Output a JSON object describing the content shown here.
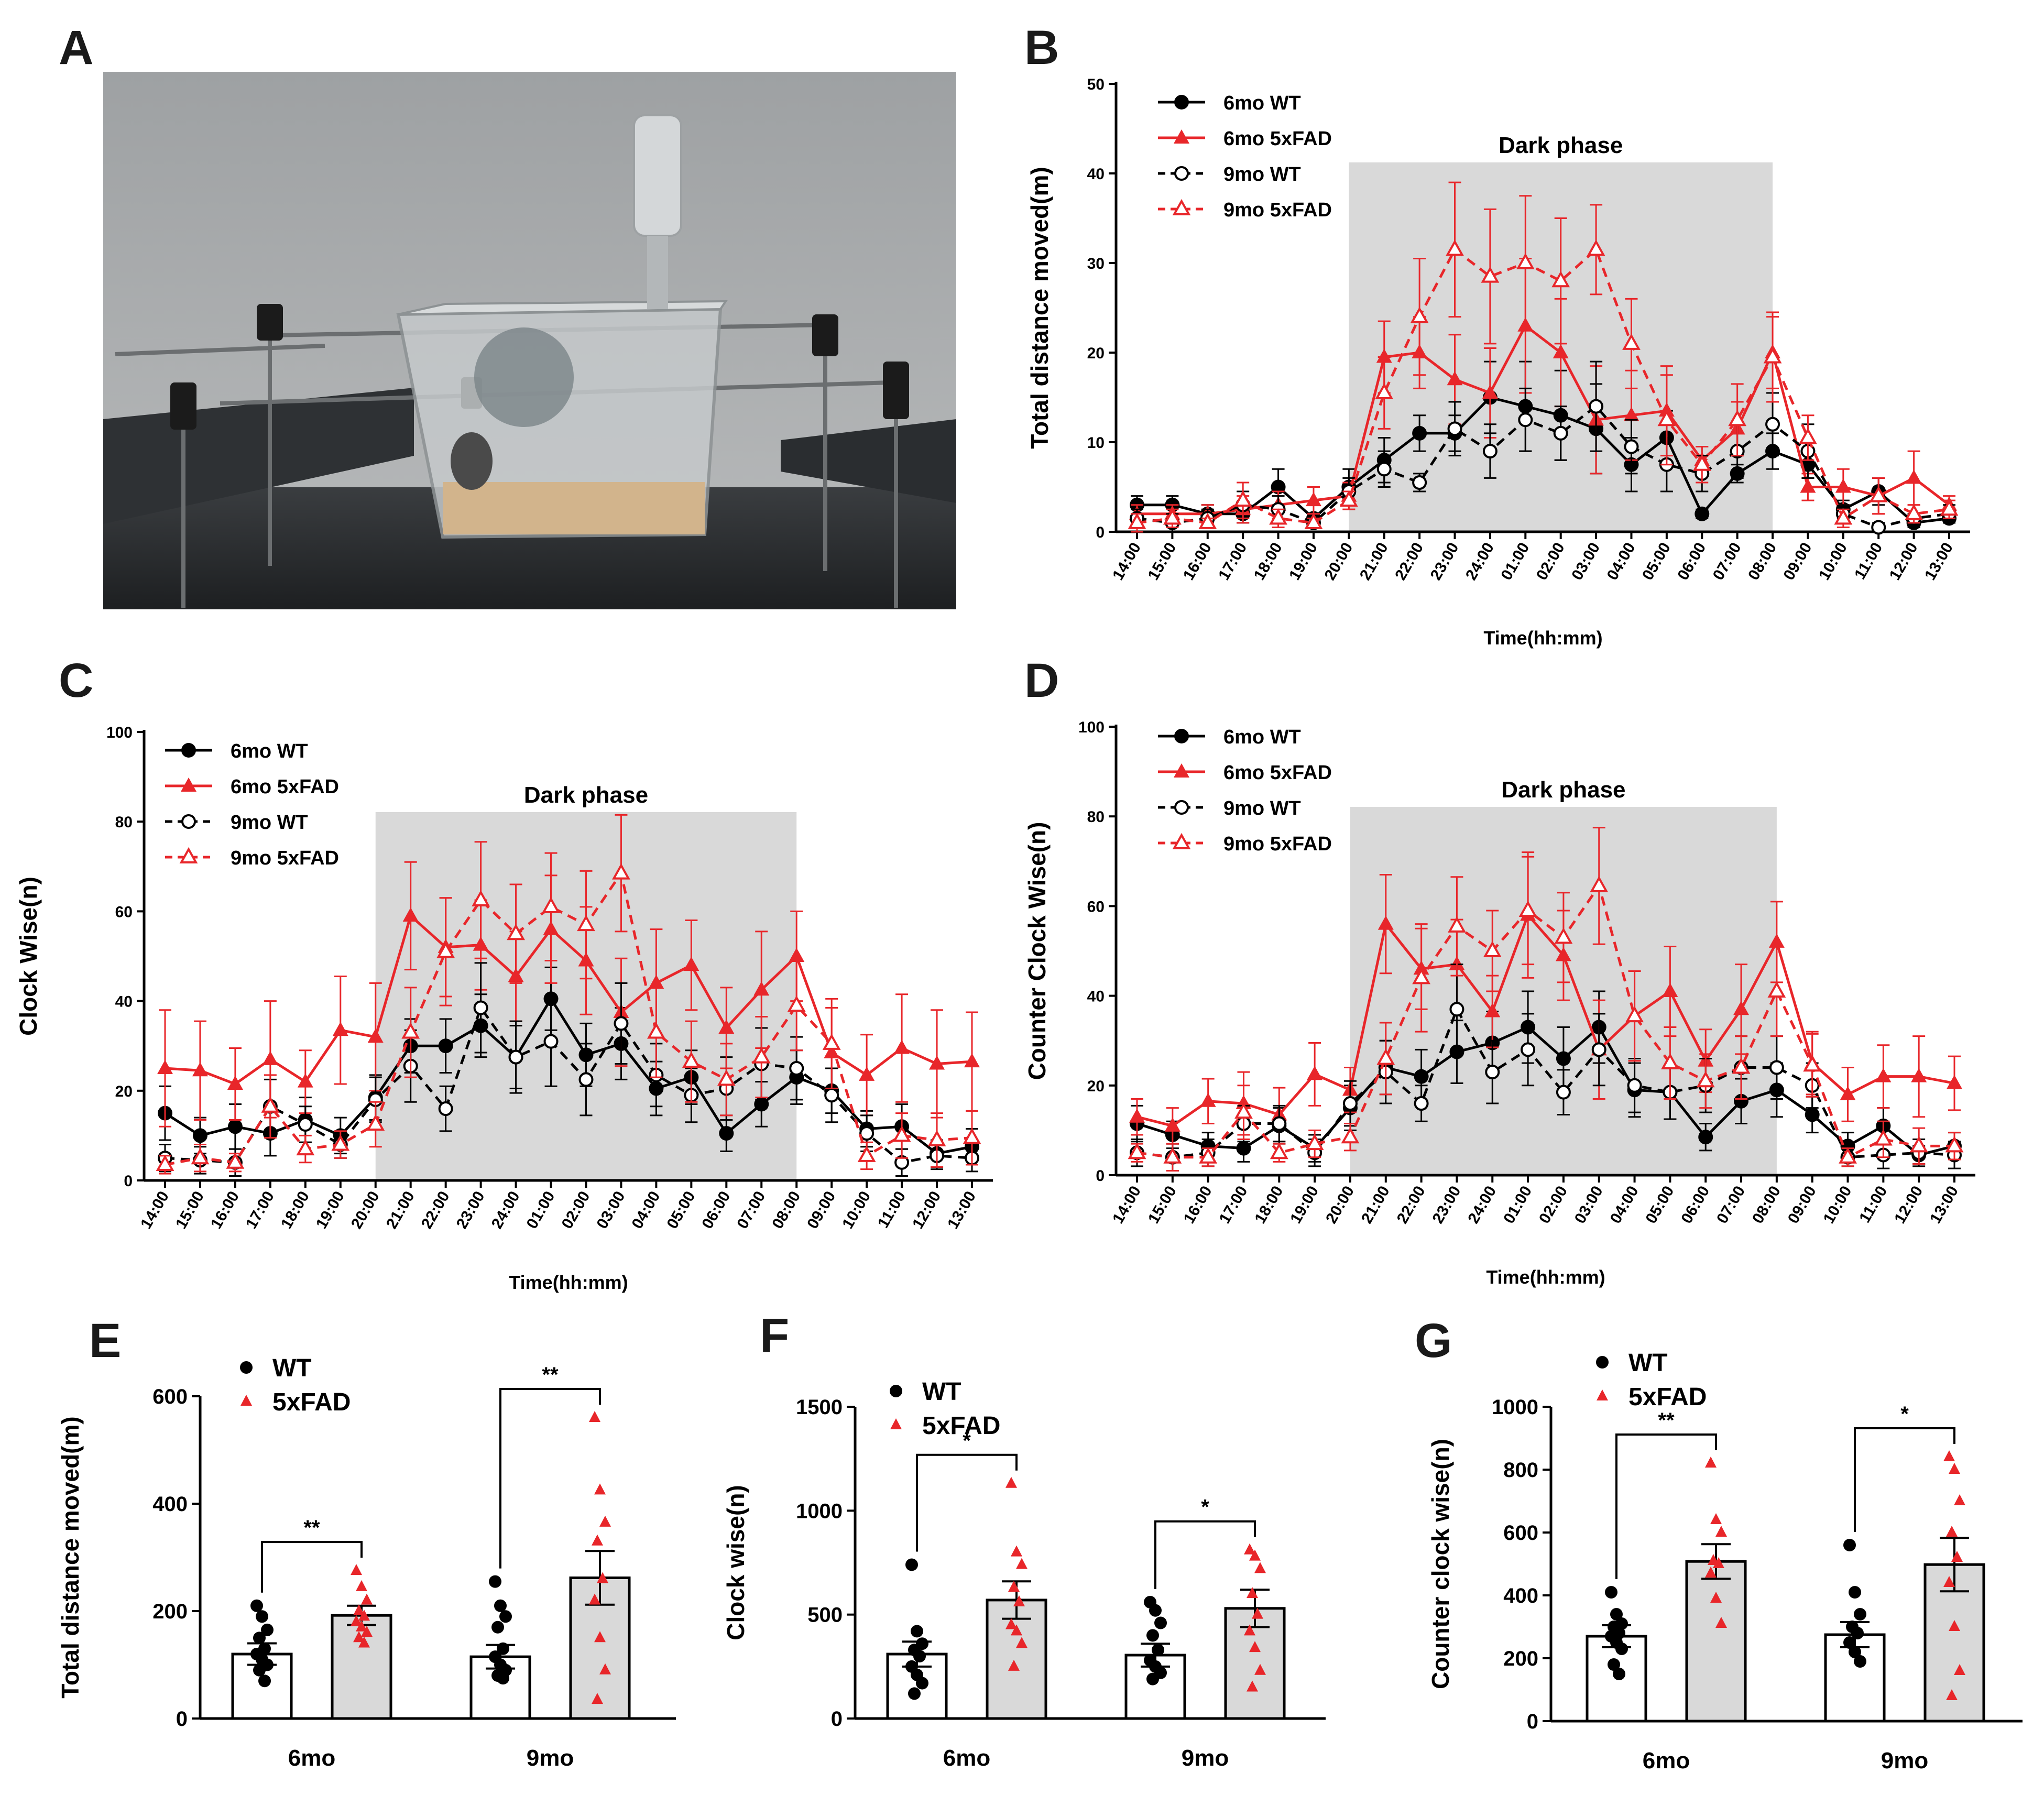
{
  "colors": {
    "wt": "#000000",
    "fad": "#e8262a",
    "shade": "#d9d9d9",
    "bar_fad": "#d9d9d9",
    "bar_wt": "#ffffff"
  },
  "panel_letters": [
    "A",
    "B",
    "C",
    "D",
    "E",
    "F",
    "G"
  ],
  "chart_data": [
    {
      "panel": "B",
      "type": "line",
      "ylabel": "Total distance moved(m)",
      "xlabel": "Time(hh:mm)",
      "ylim": [
        0,
        50
      ],
      "yticks": [
        0,
        10,
        20,
        30,
        40,
        50
      ],
      "shade_label": "Dark phase",
      "shade_range": [
        "20:00",
        "08:00"
      ],
      "legend_position": "top-left",
      "categories": [
        "14:00",
        "15:00",
        "16:00",
        "17:00",
        "18:00",
        "19:00",
        "20:00",
        "21:00",
        "22:00",
        "23:00",
        "24:00",
        "01:00",
        "02:00",
        "03:00",
        "04:00",
        "05:00",
        "06:00",
        "07:00",
        "08:00",
        "09:00",
        "10:00",
        "11:00",
        "12:00",
        "13:00"
      ],
      "series": [
        {
          "name": "6mo WT",
          "key": "wt6",
          "values": [
            3.0,
            3.0,
            2.0,
            2.0,
            5.0,
            1.5,
            5.0,
            8.0,
            11.0,
            11.0,
            15.0,
            14.0,
            13.0,
            11.5,
            7.5,
            10.5,
            2.0,
            6.5,
            9.0,
            7.5,
            2.5,
            4.5,
            1.0,
            1.5
          ],
          "err": [
            1.0,
            1.0,
            1.0,
            1.0,
            2.0,
            0.5,
            2.0,
            2.5,
            2.0,
            2.0,
            4.0,
            5.0,
            5.0,
            5.0,
            3.0,
            3.0,
            0.5,
            1.0,
            2.0,
            1.5,
            1.0,
            1.5,
            0.5,
            0.5
          ]
        },
        {
          "name": "6mo 5xFAD",
          "key": "fad6",
          "values": [
            2.0,
            2.0,
            2.0,
            2.5,
            3.0,
            3.5,
            4.0,
            19.5,
            20.0,
            17.0,
            15.5,
            23.0,
            20.0,
            12.5,
            13.0,
            13.5,
            8.0,
            11.5,
            20.0,
            5.0,
            5.0,
            4.0,
            6.0,
            3.0
          ],
          "err": [
            1.0,
            1.0,
            1.0,
            1.5,
            1.5,
            1.5,
            1.5,
            4.0,
            4.0,
            5.0,
            5.0,
            7.5,
            6.0,
            6.0,
            5.0,
            5.0,
            1.5,
            3.0,
            4.0,
            1.5,
            2.0,
            2.0,
            3.0,
            1.0
          ]
        },
        {
          "name": "9mo WT",
          "key": "wt9",
          "values": [
            1.5,
            1.0,
            1.5,
            3.0,
            2.5,
            1.0,
            4.5,
            7.0,
            5.5,
            11.5,
            9.0,
            12.5,
            11.0,
            14.0,
            9.5,
            7.5,
            6.5,
            9.0,
            12.0,
            9.0,
            2.0,
            0.5,
            1.5,
            2.0
          ],
          "err": [
            1.0,
            1.0,
            1.0,
            1.5,
            1.5,
            0.5,
            1.5,
            2.0,
            1.0,
            3.0,
            3.0,
            3.5,
            3.0,
            5.0,
            3.0,
            3.0,
            2.0,
            3.0,
            3.5,
            3.0,
            1.0,
            0.5,
            0.5,
            1.0
          ]
        },
        {
          "name": "9mo 5xFAD",
          "key": "fad9",
          "values": [
            1.0,
            1.5,
            1.0,
            3.5,
            1.5,
            1.0,
            3.5,
            15.5,
            24.0,
            31.5,
            28.5,
            30.0,
            28.0,
            31.5,
            21.0,
            12.5,
            7.5,
            12.5,
            19.5,
            10.5,
            1.5,
            4.0,
            2.0,
            2.5
          ],
          "err": [
            1.0,
            1.0,
            0.5,
            2.0,
            1.0,
            0.5,
            1.0,
            4.0,
            6.5,
            7.5,
            7.5,
            7.5,
            7.0,
            5.0,
            5.0,
            5.0,
            2.0,
            4.0,
            5.0,
            2.5,
            1.0,
            2.0,
            1.0,
            1.0
          ]
        }
      ]
    },
    {
      "panel": "C",
      "type": "line",
      "ylabel": "Clock Wise(n)",
      "xlabel": "Time(hh:mm)",
      "ylim": [
        0,
        100
      ],
      "yticks": [
        0,
        20,
        40,
        60,
        80,
        100
      ],
      "shade_label": "Dark phase",
      "shade_range": [
        "20:00",
        "08:00"
      ],
      "legend_position": "top-left",
      "categories": [
        "14:00",
        "15:00",
        "16:00",
        "17:00",
        "18:00",
        "19:00",
        "20:00",
        "21:00",
        "22:00",
        "23:00",
        "24:00",
        "01:00",
        "02:00",
        "03:00",
        "04:00",
        "05:00",
        "06:00",
        "07:00",
        "08:00",
        "09:00",
        "10:00",
        "11:00",
        "12:00",
        "13:00"
      ],
      "series": [
        {
          "name": "6mo WT",
          "key": "wt6",
          "values": [
            15,
            10,
            12,
            10.5,
            13.5,
            10,
            18.5,
            30,
            30,
            34.5,
            27.5,
            40.5,
            28,
            30.5,
            20.5,
            23,
            10.5,
            17,
            23,
            20,
            11.5,
            12,
            6,
            7.5
          ],
          "err": [
            6,
            4,
            5,
            5,
            5,
            4,
            5,
            6,
            6,
            7,
            7,
            7,
            7,
            8,
            6,
            6,
            4,
            5,
            6,
            5,
            4,
            5,
            3,
            4
          ]
        },
        {
          "name": "6mo 5xFAD",
          "key": "fad6",
          "values": [
            25,
            24.5,
            21.5,
            27,
            22,
            33.5,
            32,
            59,
            52,
            52.5,
            45.5,
            56,
            49,
            37.5,
            44,
            48,
            34,
            42.5,
            50,
            28.5,
            23.5,
            29.5,
            26,
            26.5
          ],
          "err": [
            13,
            11,
            8,
            13,
            7,
            12,
            12,
            12,
            11,
            10,
            10,
            12,
            12,
            12,
            12,
            10,
            9,
            13,
            10,
            10,
            9,
            12,
            12,
            11
          ]
        },
        {
          "name": "9mo WT",
          "key": "wt9",
          "values": [
            5,
            4.5,
            4,
            16.5,
            12.5,
            8,
            18,
            25.5,
            16,
            38.5,
            27.5,
            31,
            22.5,
            35,
            23.5,
            19,
            20.5,
            26,
            25,
            19,
            10.5,
            4,
            5.5,
            5
          ],
          "err": [
            3,
            3,
            3,
            6,
            4,
            3,
            5,
            8,
            5,
            10,
            8,
            10,
            8,
            9,
            7,
            6,
            7,
            8,
            7,
            6,
            4,
            3,
            3,
            3
          ]
        },
        {
          "name": "9mo 5xFAD",
          "key": "fad9",
          "values": [
            3.5,
            5,
            4,
            16.5,
            7,
            8,
            12.5,
            33,
            51,
            62.5,
            55,
            61,
            57,
            68.5,
            33,
            26.5,
            22.5,
            27.5,
            39,
            30.5,
            5.5,
            10,
            9,
            9.5
          ],
          "err": [
            2,
            3,
            2,
            7,
            3,
            3,
            5,
            10,
            12,
            13,
            11,
            12,
            12,
            13,
            10,
            9,
            8,
            9,
            10,
            10,
            3,
            5,
            6,
            6
          ]
        }
      ]
    },
    {
      "panel": "D",
      "type": "line",
      "ylabel": "Counter Clock Wise(n)",
      "xlabel": "Time(hh:mm)",
      "ylim": [
        0,
        100
      ],
      "yticks": [
        0,
        20,
        40,
        60,
        80,
        100
      ],
      "shade_label": "Dark phase",
      "shade_range": [
        "20:00",
        "08:00"
      ],
      "legend_position": "top-left",
      "categories": [
        "14:00",
        "15:00",
        "16:00",
        "17:00",
        "18:00",
        "19:00",
        "20:00",
        "21:00",
        "22:00",
        "23:00",
        "24:00",
        "01:00",
        "02:00",
        "03:00",
        "04:00",
        "05:00",
        "06:00",
        "07:00",
        "08:00",
        "09:00",
        "10:00",
        "11:00",
        "12:00",
        "13:00"
      ],
      "series": [
        {
          "name": "6mo WT",
          "key": "wt6",
          "values": [
            11.5,
            9,
            6.5,
            6,
            11,
            6,
            15,
            24,
            22,
            27.5,
            29.5,
            33,
            26,
            33,
            19,
            18.5,
            8.5,
            16.5,
            19,
            13.5,
            6.5,
            11,
            4.5,
            6.5
          ],
          "err": [
            4,
            3,
            3,
            3,
            4,
            3,
            5,
            6,
            6,
            7,
            7,
            8,
            7,
            8,
            6,
            6,
            3,
            5,
            6,
            4,
            3,
            4,
            2,
            3
          ]
        },
        {
          "name": "6mo 5xFAD",
          "key": "fad6",
          "values": [
            13,
            11,
            16.5,
            16,
            13.5,
            22.5,
            19,
            56,
            46,
            47,
            36.5,
            58,
            49,
            28,
            35.5,
            41,
            25.5,
            37,
            52,
            25,
            18,
            22,
            22,
            20.5
          ],
          "err": [
            4,
            4,
            5,
            7,
            6,
            7,
            5,
            11,
            9,
            10,
            8,
            14,
            10,
            11,
            10,
            10,
            7,
            10,
            9,
            7,
            6,
            7,
            9,
            6
          ]
        },
        {
          "name": "9mo WT",
          "key": "wt9",
          "values": [
            5,
            4,
            5,
            11.5,
            11.5,
            5,
            16,
            23,
            16,
            37,
            23,
            28,
            18.5,
            28,
            20,
            18.5,
            20,
            24,
            24,
            20,
            4,
            4.5,
            5,
            4.5
          ],
          "err": [
            3,
            3,
            3,
            4,
            4,
            3,
            5,
            7,
            4,
            10,
            7,
            8,
            5,
            8,
            6,
            6,
            6,
            7,
            7,
            5,
            2,
            3,
            3,
            3
          ]
        },
        {
          "name": "9mo 5xFAD",
          "key": "fad9",
          "values": [
            5,
            4,
            4,
            14,
            5,
            7,
            8.5,
            26,
            44,
            55.5,
            50,
            59,
            53,
            64.5,
            35.5,
            25,
            21,
            24,
            41,
            24.5,
            4,
            8,
            6.5,
            6.5
          ],
          "err": [
            2,
            3,
            2,
            6,
            2,
            3,
            3,
            8,
            12,
            11,
            9,
            12,
            10,
            13,
            10,
            8,
            6,
            7,
            10,
            7,
            2,
            4,
            4,
            3
          ]
        }
      ]
    },
    {
      "panel": "E",
      "type": "bar",
      "ylabel": "Total distance moved(m)",
      "ylim": [
        0,
        600
      ],
      "yticks": [
        0,
        200,
        400,
        600
      ],
      "legend": [
        "WT",
        "5xFAD"
      ],
      "legend_position": "top-left",
      "categories": [
        "6mo",
        "9mo"
      ],
      "series": [
        {
          "name": "WT",
          "key": "wt",
          "values": [
            120,
            115
          ],
          "err": [
            20,
            22
          ],
          "points": [
            [
              210,
              190,
              165,
              150,
              130,
              120,
              110,
              100,
              90,
              70
            ],
            [
              255,
              210,
              190,
              170,
              130,
              115,
              100,
              90,
              80,
              75
            ]
          ]
        },
        {
          "name": "5xFAD",
          "key": "fad",
          "values": [
            192,
            262
          ],
          "err": [
            18,
            50
          ],
          "points": [
            [
              275,
              245,
              220,
              200,
              190,
              180,
              170,
              160,
              150,
              140
            ],
            [
              560,
              425,
              365,
              330,
              260,
              220,
              150,
              90,
              35
            ]
          ]
        }
      ],
      "significance": [
        "**",
        "**"
      ]
    },
    {
      "panel": "F",
      "type": "bar",
      "ylabel": "Clock wise(n)",
      "ylim": [
        0,
        1500
      ],
      "yticks": [
        0,
        500,
        1000,
        1500
      ],
      "legend": [
        "WT",
        "5xFAD"
      ],
      "legend_position": "top-left",
      "categories": [
        "6mo",
        "9mo"
      ],
      "series": [
        {
          "name": "WT",
          "key": "wt",
          "values": [
            310,
            305
          ],
          "err": [
            60,
            55
          ],
          "points": [
            [
              740,
              420,
              360,
              330,
              300,
              250,
              210,
              170,
              120
            ],
            [
              560,
              520,
              460,
              400,
              330,
              280,
              250,
              220,
              190
            ]
          ]
        },
        {
          "name": "5xFAD",
          "key": "fad",
          "values": [
            570,
            530
          ],
          "err": [
            90,
            90
          ],
          "points": [
            [
              1130,
              800,
              740,
              630,
              560,
              450,
              420,
              360,
              250
            ],
            [
              810,
              780,
              720,
              600,
              500,
              420,
              340,
              230,
              150
            ]
          ]
        }
      ],
      "significance": [
        "*",
        "*"
      ]
    },
    {
      "panel": "G",
      "type": "bar",
      "ylabel": "Counter clock wise(n)",
      "ylim": [
        0,
        1000
      ],
      "yticks": [
        0,
        200,
        400,
        600,
        800,
        1000
      ],
      "legend": [
        "WT",
        "5xFAD"
      ],
      "legend_position": "top-left",
      "categories": [
        "6mo",
        "9mo"
      ],
      "series": [
        {
          "name": "WT",
          "key": "wt",
          "values": [
            270,
            275
          ],
          "err": [
            35,
            40
          ],
          "points": [
            [
              410,
              340,
              310,
              300,
              280,
              270,
              250,
              230,
              180,
              150
            ],
            [
              560,
              410,
              340,
              300,
              280,
              250,
              220,
              190
            ]
          ]
        },
        {
          "name": "5xFAD",
          "key": "fad",
          "values": [
            508,
            498
          ],
          "err": [
            55,
            85
          ],
          "points": [
            [
              820,
              640,
              600,
              510,
              500,
              470,
              390,
              310
            ],
            [
              840,
              800,
              700,
              600,
              520,
              440,
              300,
              160,
              80
            ]
          ]
        }
      ],
      "significance": [
        "**",
        "*"
      ]
    }
  ]
}
